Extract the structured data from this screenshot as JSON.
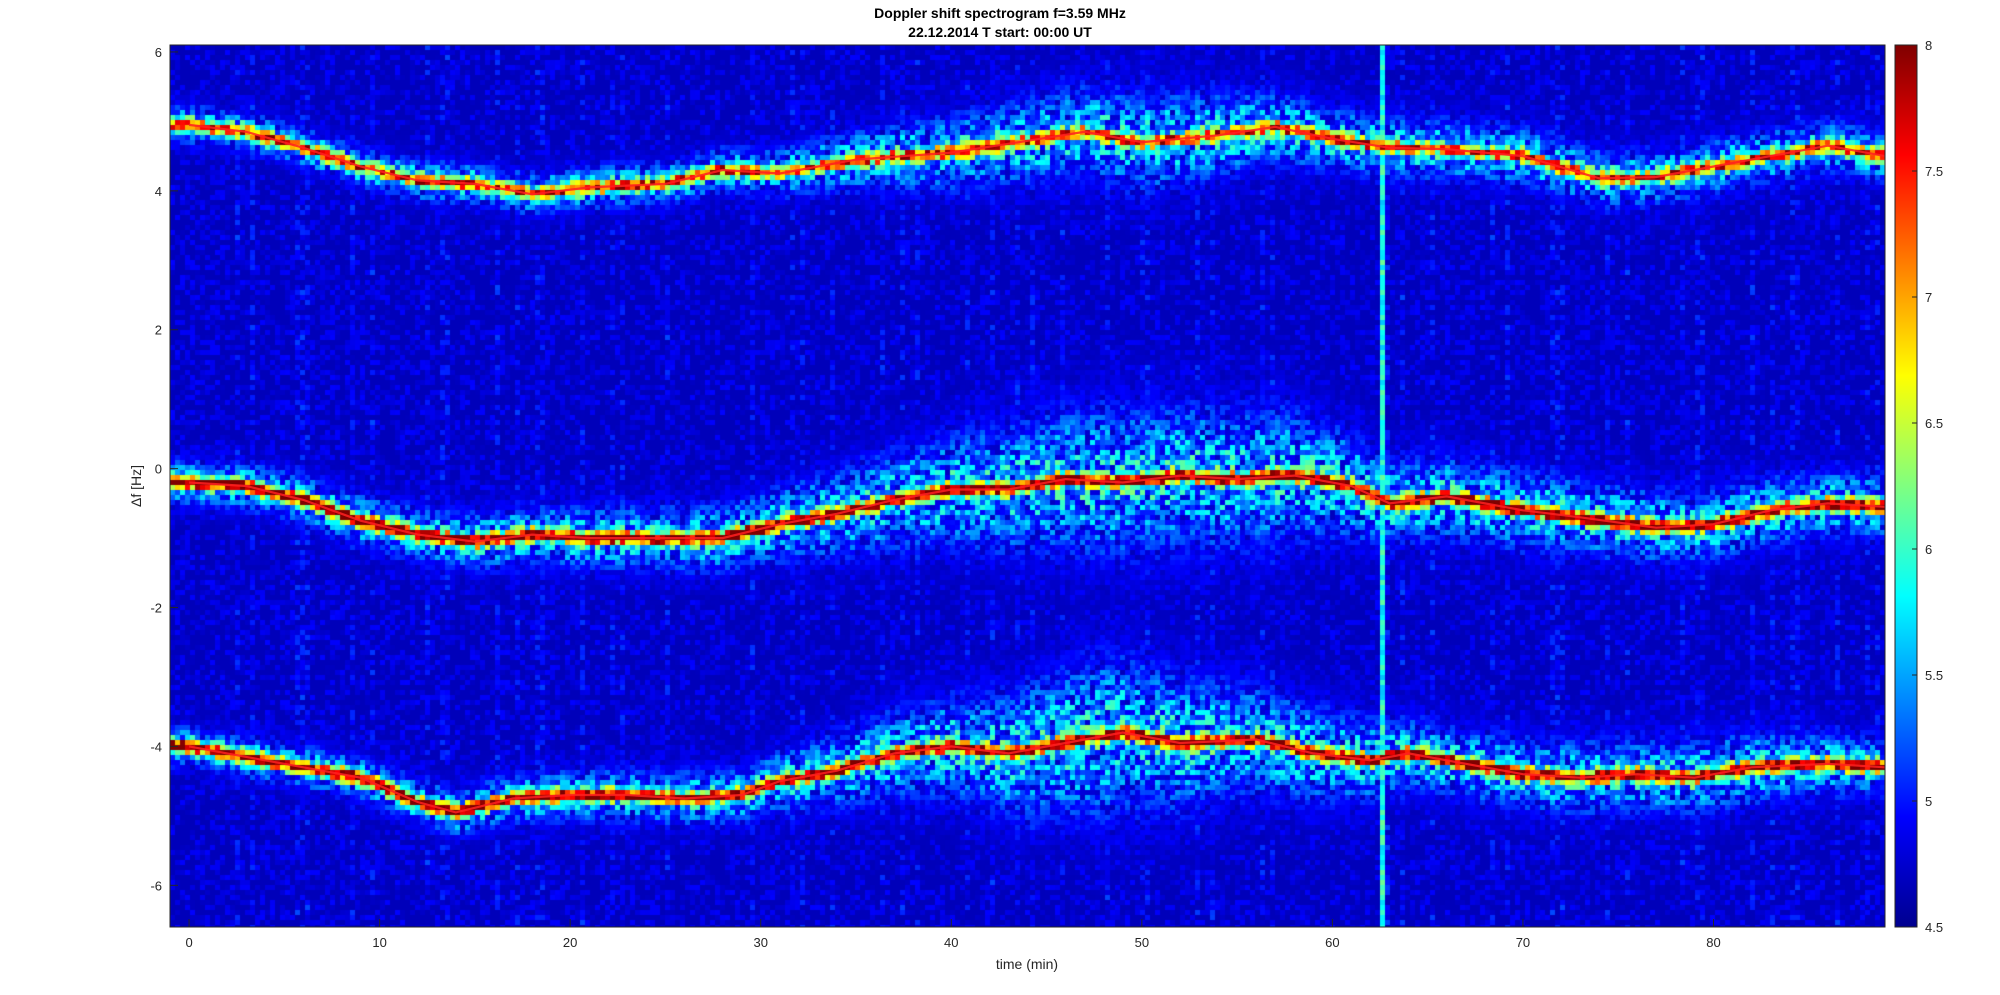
{
  "title_line1": "Doppler shift spectrogram f=3.59 MHz",
  "title_line2": "22.12.2014   T start: 00:00 UT",
  "chart_data": {
    "type": "heatmap",
    "title": "Doppler shift spectrogram f=3.59 MHz",
    "subtitle": "22.12.2014   T start: 00:00 UT",
    "xlabel": "time (min)",
    "ylabel": "Δf [Hz]",
    "xlim": [
      -1,
      89
    ],
    "ylim": [
      -6.6,
      6.1
    ],
    "x_ticks": [
      0,
      10,
      20,
      30,
      40,
      50,
      60,
      70,
      80
    ],
    "y_ticks": [
      6,
      4,
      2,
      0,
      -2,
      -4,
      -6
    ],
    "colorbar": {
      "colormap": "jet",
      "range": [
        4.5,
        8
      ],
      "ticks": [
        8,
        7.5,
        7,
        6.5,
        6,
        5.5,
        5,
        4.5
      ]
    },
    "background_level": 4.7,
    "vertical_burst": {
      "time": 62.6,
      "level": 6.0
    },
    "traces": [
      {
        "label": "",
        "points": [
          [
            0,
            4.95
          ],
          [
            3,
            4.85
          ],
          [
            6,
            4.62
          ],
          [
            9,
            4.35
          ],
          [
            12,
            4.15
          ],
          [
            15,
            4.1
          ],
          [
            18,
            3.95
          ],
          [
            21,
            4.05
          ],
          [
            25,
            4.1
          ],
          [
            28,
            4.3
          ],
          [
            31,
            4.25
          ],
          [
            35,
            4.45
          ],
          [
            40,
            4.55
          ],
          [
            44,
            4.72
          ],
          [
            47,
            4.85
          ],
          [
            50,
            4.7
          ],
          [
            54,
            4.8
          ],
          [
            57,
            4.92
          ],
          [
            60,
            4.75
          ],
          [
            63,
            4.62
          ],
          [
            66,
            4.6
          ],
          [
            70,
            4.5
          ],
          [
            74,
            4.18
          ],
          [
            77,
            4.2
          ],
          [
            80,
            4.35
          ],
          [
            84,
            4.55
          ],
          [
            86,
            4.65
          ],
          [
            89,
            4.5
          ]
        ],
        "spread": [
          [
            0,
            0.3
          ],
          [
            30,
            0.35
          ],
          [
            40,
            0.6
          ],
          [
            50,
            0.8
          ],
          [
            60,
            0.5
          ],
          [
            75,
            0.45
          ],
          [
            89,
            0.4
          ]
        ],
        "peak": 7.1
      },
      {
        "label": "",
        "points": [
          [
            0,
            -0.2
          ],
          [
            3,
            -0.25
          ],
          [
            6,
            -0.45
          ],
          [
            9,
            -0.75
          ],
          [
            12,
            -0.95
          ],
          [
            15,
            -1.05
          ],
          [
            18,
            -0.95
          ],
          [
            21,
            -1.0
          ],
          [
            25,
            -1.0
          ],
          [
            28,
            -1.0
          ],
          [
            31,
            -0.8
          ],
          [
            34,
            -0.65
          ],
          [
            37,
            -0.45
          ],
          [
            40,
            -0.3
          ],
          [
            43,
            -0.3
          ],
          [
            46,
            -0.15
          ],
          [
            49,
            -0.2
          ],
          [
            52,
            -0.1
          ],
          [
            55,
            -0.15
          ],
          [
            58,
            -0.1
          ],
          [
            61,
            -0.25
          ],
          [
            63,
            -0.5
          ],
          [
            66,
            -0.4
          ],
          [
            70,
            -0.6
          ],
          [
            73,
            -0.7
          ],
          [
            77,
            -0.85
          ],
          [
            80,
            -0.8
          ],
          [
            83,
            -0.6
          ],
          [
            86,
            -0.5
          ],
          [
            89,
            -0.55
          ]
        ],
        "spread": [
          [
            0,
            0.35
          ],
          [
            30,
            0.55
          ],
          [
            40,
            0.9
          ],
          [
            48,
            1.2
          ],
          [
            57,
            1.1
          ],
          [
            63,
            0.7
          ],
          [
            75,
            0.6
          ],
          [
            89,
            0.5
          ]
        ],
        "peak": 8.0
      },
      {
        "label": "",
        "points": [
          [
            0,
            -4.0
          ],
          [
            3,
            -4.15
          ],
          [
            6,
            -4.3
          ],
          [
            9,
            -4.45
          ],
          [
            12,
            -4.8
          ],
          [
            14,
            -4.95
          ],
          [
            17,
            -4.75
          ],
          [
            20,
            -4.7
          ],
          [
            23,
            -4.7
          ],
          [
            26,
            -4.75
          ],
          [
            29,
            -4.7
          ],
          [
            31,
            -4.5
          ],
          [
            34,
            -4.35
          ],
          [
            37,
            -4.1
          ],
          [
            40,
            -4.0
          ],
          [
            43,
            -4.1
          ],
          [
            46,
            -3.95
          ],
          [
            49,
            -3.8
          ],
          [
            52,
            -3.95
          ],
          [
            56,
            -3.9
          ],
          [
            59,
            -4.1
          ],
          [
            62,
            -4.2
          ],
          [
            64,
            -4.1
          ],
          [
            67,
            -4.25
          ],
          [
            70,
            -4.4
          ],
          [
            73,
            -4.45
          ],
          [
            76,
            -4.4
          ],
          [
            79,
            -4.45
          ],
          [
            82,
            -4.3
          ],
          [
            86,
            -4.25
          ],
          [
            89,
            -4.3
          ]
        ],
        "spread": [
          [
            0,
            0.3
          ],
          [
            30,
            0.45
          ],
          [
            40,
            0.8
          ],
          [
            48,
            1.3
          ],
          [
            55,
            0.9
          ],
          [
            65,
            0.55
          ],
          [
            80,
            0.6
          ],
          [
            89,
            0.45
          ]
        ],
        "peak": 7.9
      }
    ]
  }
}
